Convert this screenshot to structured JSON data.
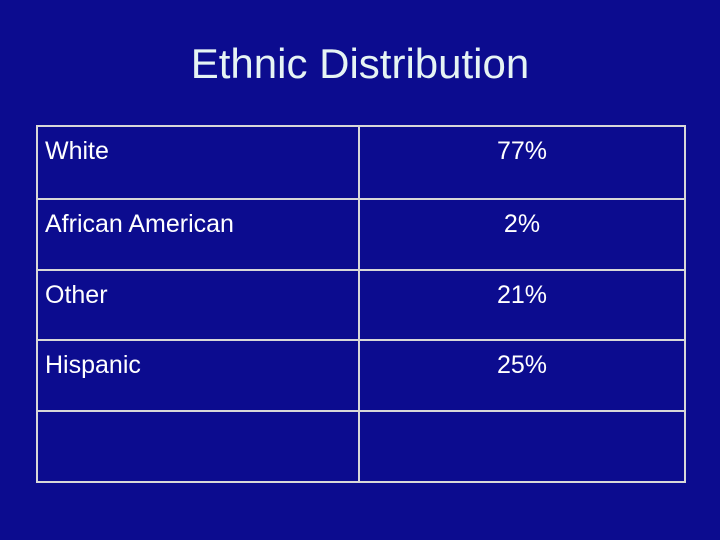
{
  "header": {
    "title": "Ethnic Distribution"
  },
  "table": {
    "rows": [
      [
        "White",
        "77%"
      ],
      [
        "African American",
        "2%"
      ],
      [
        "Other",
        "21%"
      ],
      [
        "Hispanic",
        "25%"
      ]
    ]
  }
}
